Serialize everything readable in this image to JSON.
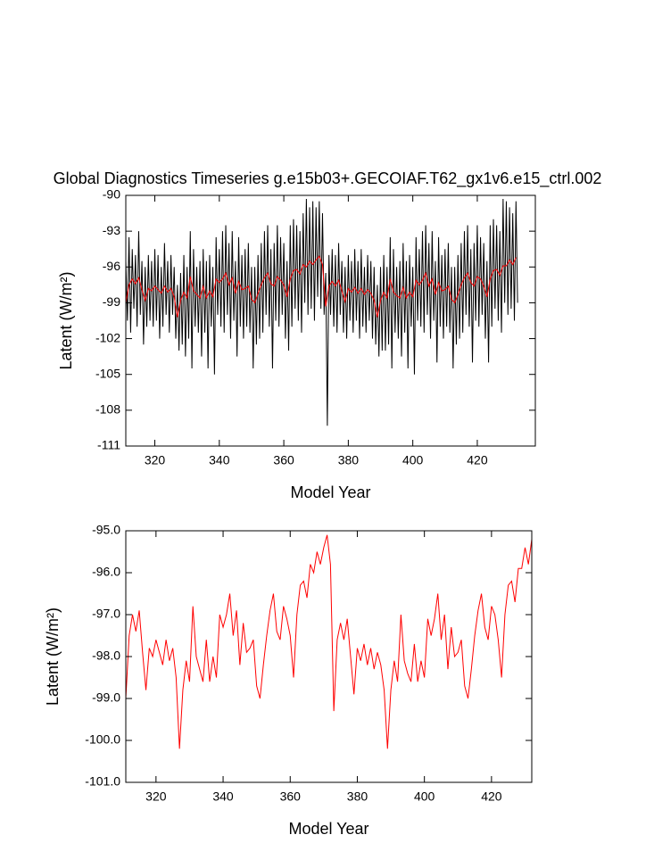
{
  "chart_data": [
    {
      "type": "line",
      "title": "Global Diagnostics Timeseries g.e15b03+.GECOIAF.T62_gx1v6.e15_ctrl.002",
      "xlabel": "Model Year",
      "ylabel": "Latent (W/m²)",
      "xlim": [
        311,
        438
      ],
      "xticks": [
        320,
        340,
        360,
        380,
        400,
        420
      ],
      "ylim": [
        -111,
        -90
      ],
      "yticks": [
        -111,
        -108,
        -105,
        -102,
        -99,
        -96,
        -93,
        -90
      ],
      "series": [
        {
          "color": "#000000",
          "x": [
            311,
            311.5,
            312,
            312.5,
            313,
            313.5,
            314,
            314.5,
            315,
            315.5,
            316,
            316.5,
            317,
            317.5,
            318,
            318.5,
            319,
            319.5,
            320,
            320.5,
            321,
            321.5,
            322,
            322.5,
            323,
            323.5,
            324,
            324.5,
            325,
            325.5,
            326,
            326.5,
            327,
            327.5,
            328,
            328.5,
            329,
            329.5,
            330,
            330.5,
            331,
            331.5,
            332,
            332.5,
            333,
            333.5,
            334,
            334.5,
            335,
            335.5,
            336,
            336.5,
            337,
            337.5,
            338,
            338.5,
            339,
            339.5,
            340,
            340.5,
            341,
            341.5,
            342,
            342.5,
            343,
            343.5,
            344,
            344.5,
            345,
            345.5,
            346,
            346.5,
            347,
            347.5,
            348,
            348.5,
            349,
            349.5,
            350,
            350.5,
            351,
            351.5,
            352,
            352.5,
            353,
            353.5,
            354,
            354.5,
            355,
            355.5,
            356,
            356.5,
            357,
            357.5,
            358,
            358.5,
            359,
            359.5,
            360,
            360.5,
            361,
            361.5,
            362,
            362.5,
            363,
            363.5,
            364,
            364.5,
            365,
            365.5,
            366,
            366.5,
            367,
            367.5,
            368,
            368.5,
            369,
            369.5,
            370,
            370.5,
            371,
            371.5,
            372,
            372.5,
            373,
            373.5,
            374,
            374.5,
            375,
            375.5,
            376,
            376.5,
            377,
            377.5,
            378,
            378.5,
            379,
            379.5,
            380,
            380.5,
            381,
            381.5,
            382,
            382.5,
            383,
            383.5,
            384,
            384.5,
            385,
            385.5,
            386,
            386.5,
            387,
            387.5,
            388,
            388.5,
            389,
            389.5,
            390,
            390.5,
            391,
            391.5,
            392,
            392.5,
            393,
            393.5,
            394,
            394.5,
            395,
            395.5,
            396,
            396.5,
            397,
            397.5,
            398,
            398.5,
            399,
            399.5,
            400,
            400.5,
            401,
            401.5,
            402,
            402.5,
            403,
            403.5,
            404,
            404.5,
            405,
            405.5,
            406,
            406.5,
            407,
            407.5,
            408,
            408.5,
            409,
            409.5,
            410,
            410.5,
            411,
            411.5,
            412,
            412.5,
            413,
            413.5,
            414,
            414.5,
            415,
            415.5,
            416,
            416.5,
            417,
            417.5,
            418,
            418.5,
            419,
            419.5,
            420,
            420.5,
            421,
            421.5,
            422,
            422.5,
            423,
            423.5,
            424,
            424.5,
            425,
            425.5,
            426,
            426.5,
            427,
            427.5,
            428,
            428.5,
            429,
            429.5,
            430,
            430.5,
            431,
            431.5,
            432,
            432.5
          ],
          "values": [
            -95.5,
            -100.5,
            -93.5,
            -101.5,
            -94.5,
            -99.5,
            -95.0,
            -101.0,
            -93.0,
            -100.0,
            -95.5,
            -102.5,
            -96.0,
            -101.0,
            -95.0,
            -100.5,
            -95.5,
            -101.0,
            -94.5,
            -100.5,
            -95.0,
            -102.0,
            -96.0,
            -101.0,
            -94.0,
            -100.0,
            -95.5,
            -101.5,
            -95.0,
            -100.0,
            -96.0,
            -102.0,
            -97.5,
            -103.0,
            -96.5,
            -102.5,
            -95.0,
            -103.5,
            -96.0,
            -102.0,
            -93.0,
            -104.5,
            -94.5,
            -101.0,
            -96.0,
            -101.5,
            -95.5,
            -103.5,
            -94.5,
            -101.5,
            -95.5,
            -104.5,
            -95.0,
            -101.0,
            -96.0,
            -105.0,
            -93.5,
            -100.0,
            -94.5,
            -101.0,
            -93.0,
            -101.5,
            -92.5,
            -100.0,
            -94.0,
            -102.0,
            -93.0,
            -100.5,
            -95.5,
            -103.5,
            -93.5,
            -101.0,
            -95.0,
            -102.0,
            -94.5,
            -101.0,
            -94.0,
            -101.5,
            -96.0,
            -104.5,
            -96.0,
            -102.5,
            -95.0,
            -102.0,
            -94.0,
            -101.5,
            -93.0,
            -100.0,
            -92.5,
            -101.0,
            -94.5,
            -104.5,
            -94.0,
            -100.5,
            -92.5,
            -101.0,
            -93.5,
            -100.0,
            -94.0,
            -102.0,
            -95.5,
            -103.0,
            -92.5,
            -101.0,
            -92.0,
            -99.5,
            -92.5,
            -100.5,
            -93.0,
            -101.5,
            -91.5,
            -99.0,
            -90.3,
            -100.0,
            -91.0,
            -99.5,
            -90.5,
            -100.5,
            -91.0,
            -98.5,
            -90.5,
            -99.5,
            -91.5,
            -100.0,
            -96.5,
            -109.3,
            -95.0,
            -100.0,
            -94.5,
            -101.0,
            -95.0,
            -101.5,
            -94.0,
            -100.0,
            -95.5,
            -101.5,
            -96.0,
            -102.0,
            -95.0,
            -100.5,
            -95.5,
            -101.5,
            -94.5,
            -100.5,
            -95.5,
            -102.0,
            -94.5,
            -101.0,
            -96.0,
            -101.5,
            -95.0,
            -100.5,
            -95.5,
            -102.0,
            -96.0,
            -102.5,
            -97.5,
            -103.5,
            -96.0,
            -103.0,
            -95.0,
            -103.0,
            -96.0,
            -102.5,
            -93.5,
            -104.5,
            -94.5,
            -101.5,
            -96.0,
            -102.0,
            -95.5,
            -103.5,
            -94.0,
            -101.5,
            -95.5,
            -104.5,
            -95.0,
            -101.0,
            -96.0,
            -105.0,
            -93.5,
            -100.5,
            -94.5,
            -101.0,
            -93.0,
            -101.5,
            -92.5,
            -100.0,
            -94.0,
            -102.0,
            -93.0,
            -100.5,
            -95.5,
            -104.0,
            -93.5,
            -101.0,
            -95.0,
            -102.0,
            -94.5,
            -101.0,
            -94.0,
            -101.5,
            -96.0,
            -104.5,
            -96.0,
            -102.5,
            -95.0,
            -102.0,
            -94.0,
            -101.5,
            -93.0,
            -100.0,
            -92.5,
            -101.0,
            -94.5,
            -104.0,
            -94.0,
            -100.5,
            -92.5,
            -101.0,
            -93.5,
            -100.0,
            -94.0,
            -102.0,
            -95.5,
            -104.0,
            -92.5,
            -101.0,
            -92.0,
            -99.5,
            -92.5,
            -100.5,
            -93.0,
            -101.5,
            -90.3,
            -99.0,
            -90.5,
            -100.0,
            -91.0,
            -99.5,
            -91.5,
            -100.5,
            -90.5,
            -99.0
          ]
        },
        {
          "color": "#ff0000",
          "x": [
            311,
            312,
            313,
            314,
            315,
            316,
            317,
            318,
            319,
            320,
            321,
            322,
            323,
            324,
            325,
            326,
            327,
            328,
            329,
            330,
            331,
            332,
            333,
            334,
            335,
            336,
            337,
            338,
            339,
            340,
            341,
            342,
            343,
            344,
            345,
            346,
            347,
            348,
            349,
            350,
            351,
            352,
            353,
            354,
            355,
            356,
            357,
            358,
            359,
            360,
            361,
            362,
            363,
            364,
            365,
            366,
            367,
            368,
            369,
            370,
            371,
            372,
            373,
            374,
            375,
            376,
            377,
            378,
            379,
            380,
            381,
            382,
            383,
            384,
            385,
            386,
            387,
            388,
            389,
            390,
            391,
            392,
            393,
            394,
            395,
            396,
            397,
            398,
            399,
            400,
            401,
            402,
            403,
            404,
            405,
            406,
            407,
            408,
            409,
            410,
            411,
            412,
            413,
            414,
            415,
            416,
            417,
            418,
            419,
            420,
            421,
            422,
            423,
            424,
            425,
            426,
            427,
            428,
            429,
            430,
            431,
            432
          ],
          "values": [
            -99.0,
            -97.5,
            -97.0,
            -97.4,
            -96.9,
            -97.9,
            -98.8,
            -97.8,
            -98.0,
            -97.6,
            -97.9,
            -98.2,
            -97.6,
            -98.1,
            -97.8,
            -98.5,
            -100.2,
            -98.8,
            -98.1,
            -98.6,
            -96.8,
            -98.0,
            -98.3,
            -98.6,
            -97.6,
            -98.6,
            -98.0,
            -98.5,
            -97.0,
            -97.3,
            -97.0,
            -96.5,
            -97.5,
            -96.9,
            -98.2,
            -97.2,
            -97.9,
            -97.8,
            -97.6,
            -98.7,
            -99.0,
            -98.2,
            -97.5,
            -96.9,
            -96.5,
            -97.4,
            -97.6,
            -96.8,
            -97.1,
            -97.5,
            -98.5,
            -97.0,
            -96.3,
            -96.2,
            -96.6,
            -95.8,
            -96.0,
            -95.5,
            -95.8,
            -95.4,
            -95.1,
            -95.8,
            -99.3,
            -97.6,
            -97.2,
            -97.6,
            -97.1,
            -98.0,
            -98.9,
            -97.8,
            -98.1,
            -97.7,
            -98.2,
            -97.8,
            -98.3,
            -97.9,
            -98.2,
            -98.8,
            -100.2,
            -98.8,
            -98.1,
            -98.6,
            -97.0,
            -98.1,
            -98.4,
            -98.6,
            -97.7,
            -98.6,
            -98.1,
            -98.5,
            -97.1,
            -97.5,
            -97.1,
            -96.5,
            -97.6,
            -97.0,
            -98.3,
            -97.3,
            -98.0,
            -97.9,
            -97.6,
            -98.7,
            -99.0,
            -98.3,
            -97.5,
            -96.9,
            -96.5,
            -97.3,
            -97.6,
            -96.8,
            -97.0,
            -97.6,
            -98.5,
            -97.0,
            -96.3,
            -96.2,
            -96.7,
            -95.9,
            -95.9,
            -95.4,
            -95.8,
            -95.2
          ]
        }
      ]
    },
    {
      "type": "line",
      "xlabel": "Model Year",
      "ylabel": "Latent (W/m²)",
      "xlim": [
        311,
        432
      ],
      "xticks": [
        320,
        340,
        360,
        380,
        400,
        420
      ],
      "ylim": [
        -101,
        -95
      ],
      "yticks": [
        {
          "value": -101,
          "label": "-101.0"
        },
        {
          "value": -100,
          "label": "-100.0"
        },
        {
          "value": -99,
          "label": "-99.0"
        },
        {
          "value": -98,
          "label": "-98.0"
        },
        {
          "value": -97,
          "label": "-97.0"
        },
        {
          "value": -96,
          "label": "-96.0"
        },
        {
          "value": -95,
          "label": "-95.0"
        }
      ],
      "series": [
        {
          "color": "#ff0000",
          "x": [
            311,
            312,
            313,
            314,
            315,
            316,
            317,
            318,
            319,
            320,
            321,
            322,
            323,
            324,
            325,
            326,
            327,
            328,
            329,
            330,
            331,
            332,
            333,
            334,
            335,
            336,
            337,
            338,
            339,
            340,
            341,
            342,
            343,
            344,
            345,
            346,
            347,
            348,
            349,
            350,
            351,
            352,
            353,
            354,
            355,
            356,
            357,
            358,
            359,
            360,
            361,
            362,
            363,
            364,
            365,
            366,
            367,
            368,
            369,
            370,
            371,
            372,
            373,
            374,
            375,
            376,
            377,
            378,
            379,
            380,
            381,
            382,
            383,
            384,
            385,
            386,
            387,
            388,
            389,
            390,
            391,
            392,
            393,
            394,
            395,
            396,
            397,
            398,
            399,
            400,
            401,
            402,
            403,
            404,
            405,
            406,
            407,
            408,
            409,
            410,
            411,
            412,
            413,
            414,
            415,
            416,
            417,
            418,
            419,
            420,
            421,
            422,
            423,
            424,
            425,
            426,
            427,
            428,
            429,
            430,
            431,
            432
          ],
          "values": [
            -99.0,
            -97.5,
            -97.0,
            -97.4,
            -96.9,
            -97.9,
            -98.8,
            -97.8,
            -98.0,
            -97.6,
            -97.9,
            -98.2,
            -97.6,
            -98.1,
            -97.8,
            -98.5,
            -100.2,
            -98.8,
            -98.1,
            -98.6,
            -96.8,
            -98.0,
            -98.3,
            -98.6,
            -97.6,
            -98.6,
            -98.0,
            -98.5,
            -97.0,
            -97.3,
            -97.0,
            -96.5,
            -97.5,
            -96.9,
            -98.2,
            -97.2,
            -97.9,
            -97.8,
            -97.6,
            -98.7,
            -99.0,
            -98.2,
            -97.5,
            -96.9,
            -96.5,
            -97.4,
            -97.6,
            -96.8,
            -97.1,
            -97.5,
            -98.5,
            -97.0,
            -96.3,
            -96.2,
            -96.6,
            -95.8,
            -96.0,
            -95.5,
            -95.8,
            -95.4,
            -95.1,
            -95.8,
            -99.3,
            -97.6,
            -97.2,
            -97.6,
            -97.1,
            -98.0,
            -98.9,
            -97.8,
            -98.1,
            -97.7,
            -98.2,
            -97.8,
            -98.3,
            -97.9,
            -98.2,
            -98.8,
            -100.2,
            -98.8,
            -98.1,
            -98.6,
            -97.0,
            -98.1,
            -98.4,
            -98.6,
            -97.7,
            -98.6,
            -98.1,
            -98.5,
            -97.1,
            -97.5,
            -97.1,
            -96.5,
            -97.6,
            -97.0,
            -98.3,
            -97.3,
            -98.0,
            -97.9,
            -97.6,
            -98.7,
            -99.0,
            -98.3,
            -97.5,
            -96.9,
            -96.5,
            -97.3,
            -97.6,
            -96.8,
            -97.0,
            -97.6,
            -98.5,
            -97.0,
            -96.3,
            -96.2,
            -96.7,
            -95.9,
            -95.9,
            -95.4,
            -95.8,
            -95.2
          ]
        }
      ]
    }
  ]
}
